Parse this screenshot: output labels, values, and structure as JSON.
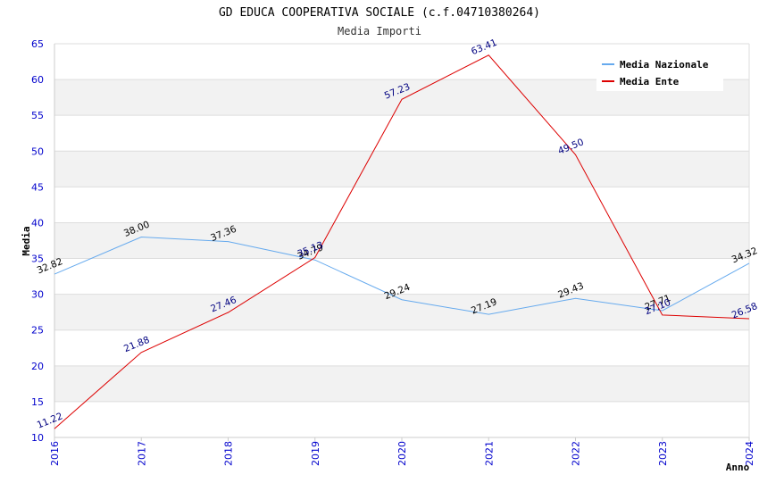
{
  "chart_data": {
    "type": "line",
    "title": "GD EDUCA COOPERATIVA SOCIALE (c.f.04710380264)",
    "subtitle": "Media Importi",
    "xlabel": "Anno",
    "ylabel": "Media",
    "ylim": [
      10,
      65
    ],
    "yticks": [
      "10",
      "15",
      "20",
      "25",
      "30",
      "35",
      "40",
      "45",
      "50",
      "55",
      "60",
      "65"
    ],
    "categories": [
      "2016",
      "2017",
      "2018",
      "2019",
      "2020",
      "2021",
      "2022",
      "2023",
      "2024"
    ],
    "grid": true,
    "legend_position": "top-right",
    "series": [
      {
        "name": "Media Nazionale",
        "color": "#66aaee",
        "values": [
          32.82,
          38.0,
          37.36,
          34.79,
          29.24,
          27.19,
          29.43,
          27.71,
          34.32
        ],
        "labels": [
          "32.82",
          "38.00",
          "37.36",
          "34.79",
          "29.24",
          "27.19",
          "29.43",
          "27.71",
          "34.32"
        ]
      },
      {
        "name": "Media Ente",
        "color": "#dd0000",
        "values": [
          11.22,
          21.88,
          27.46,
          35.13,
          57.23,
          63.41,
          49.5,
          27.1,
          26.58
        ],
        "labels": [
          "11.22",
          "21.88",
          "27.46",
          "35.13",
          "57.23",
          "63.41",
          "49.50",
          "27.10",
          "26.58"
        ]
      }
    ]
  }
}
